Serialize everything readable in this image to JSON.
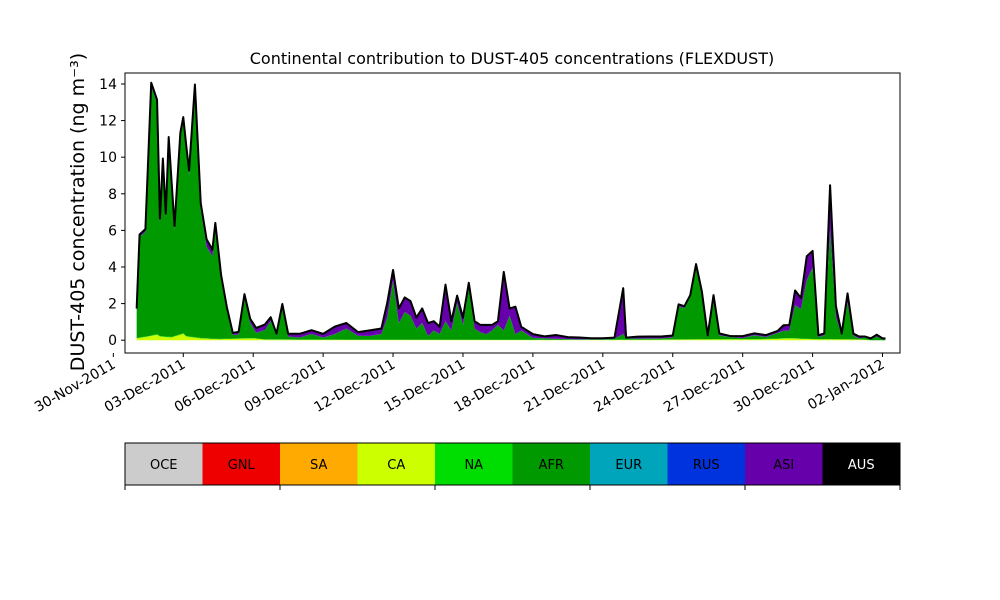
{
  "chart_data": {
    "type": "area",
    "title": "Continental contribution to DUST-405 concentrations (FLEXDUST)",
    "ylabel": "DUST-405 concentration (ng m⁻³)",
    "xlabel": "",
    "ylim": [
      -0.7,
      14.6
    ],
    "xlim": [
      "2011-11-30T12:00",
      "2012-01-02T18:00"
    ],
    "yticks": [
      0,
      2,
      4,
      6,
      8,
      10,
      12,
      14
    ],
    "xtick_labels": [
      "30-Nov-2011",
      "03-Dec-2011",
      "06-Dec-2011",
      "09-Dec-2011",
      "12-Dec-2011",
      "15-Dec-2011",
      "18-Dec-2011",
      "21-Dec-2011",
      "24-Dec-2011",
      "27-Dec-2011",
      "30-Dec-2011",
      "02-Jan-2012"
    ],
    "xtick_dates": [
      "2011-11-30",
      "2011-12-03",
      "2011-12-06",
      "2011-12-09",
      "2011-12-12",
      "2011-12-15",
      "2011-12-18",
      "2011-12-21",
      "2011-12-24",
      "2011-12-27",
      "2011-12-30",
      "2012-01-02"
    ],
    "grid": false,
    "stack_order": [
      "CA",
      "NA",
      "AFR",
      "RUS",
      "ASI"
    ],
    "series": [
      {
        "name": "CA",
        "color": "#ccff00",
        "points": [
          [
            "2011-12-01T00:00",
            0.1
          ],
          [
            "2011-12-01T12:00",
            0.2
          ],
          [
            "2011-12-01T21:00",
            0.3
          ],
          [
            "2011-12-02T00:00",
            0.2
          ],
          [
            "2011-12-02T12:00",
            0.15
          ],
          [
            "2011-12-02T21:00",
            0.3
          ],
          [
            "2011-12-03T00:00",
            0.35
          ],
          [
            "2011-12-03T03:00",
            0.2
          ],
          [
            "2011-12-03T18:00",
            0.1
          ],
          [
            "2011-12-04T12:00",
            0.05
          ],
          [
            "2011-12-06T00:00",
            0.1
          ],
          [
            "2011-12-06T12:00",
            0.03
          ],
          [
            "2011-12-10T00:00",
            0.02
          ],
          [
            "2011-12-20T00:00",
            0.01
          ],
          [
            "2011-12-28T00:00",
            0.05
          ],
          [
            "2011-12-29T00:00",
            0.1
          ],
          [
            "2011-12-30T00:00",
            0.05
          ],
          [
            "2012-01-01T06:00",
            0.03
          ]
        ]
      },
      {
        "name": "NA",
        "color": "#00dd00",
        "points": [
          [
            "2011-12-01T00:00",
            0.02
          ],
          [
            "2011-12-02T00:00",
            0.03
          ],
          [
            "2011-12-03T00:00",
            0.03
          ],
          [
            "2011-12-04T00:00",
            0.02
          ],
          [
            "2011-12-05T00:00",
            0.02
          ],
          [
            "2011-12-10T00:00",
            0.01
          ],
          [
            "2011-12-20T00:00",
            0.01
          ],
          [
            "2011-12-29T00:00",
            0.02
          ],
          [
            "2012-01-01T06:00",
            0.01
          ]
        ]
      },
      {
        "name": "AFR",
        "color": "#009900",
        "points": [
          [
            "2011-12-01T00:00",
            1.5
          ],
          [
            "2011-12-01T03:00",
            5.5
          ],
          [
            "2011-12-01T09:00",
            5.7
          ],
          [
            "2011-12-01T15:00",
            13.6
          ],
          [
            "2011-12-01T21:00",
            12.6
          ],
          [
            "2011-12-02T00:00",
            6.2
          ],
          [
            "2011-12-02T03:00",
            9.5
          ],
          [
            "2011-12-02T06:00",
            6.5
          ],
          [
            "2011-12-02T09:00",
            10.7
          ],
          [
            "2011-12-02T15:00",
            5.8
          ],
          [
            "2011-12-02T21:00",
            10.8
          ],
          [
            "2011-12-03T00:00",
            11.6
          ],
          [
            "2011-12-03T06:00",
            8.8
          ],
          [
            "2011-12-03T12:00",
            13.5
          ],
          [
            "2011-12-03T18:00",
            7.0
          ],
          [
            "2011-12-04T00:00",
            5.0
          ],
          [
            "2011-12-04T06:00",
            4.5
          ],
          [
            "2011-12-04T09:00",
            6.0
          ],
          [
            "2011-12-04T15:00",
            3.2
          ],
          [
            "2011-12-04T21:00",
            1.5
          ],
          [
            "2011-12-05T03:00",
            0.2
          ],
          [
            "2011-12-05T09:00",
            0.2
          ],
          [
            "2011-12-05T15:00",
            2.2
          ],
          [
            "2011-12-05T21:00",
            0.8
          ],
          [
            "2011-12-06T03:00",
            0.3
          ],
          [
            "2011-12-06T12:00",
            0.5
          ],
          [
            "2011-12-06T18:00",
            1.0
          ],
          [
            "2011-12-07T00:00",
            0.2
          ],
          [
            "2011-12-07T06:00",
            1.8
          ],
          [
            "2011-12-07T12:00",
            0.15
          ],
          [
            "2011-12-08T00:00",
            0.1
          ],
          [
            "2011-12-08T12:00",
            0.3
          ],
          [
            "2011-12-09T00:00",
            0.1
          ],
          [
            "2011-12-09T12:00",
            0.3
          ],
          [
            "2011-12-10T00:00",
            0.6
          ],
          [
            "2011-12-10T12:00",
            0.2
          ],
          [
            "2011-12-11T00:00",
            0.2
          ],
          [
            "2011-12-11T12:00",
            0.3
          ],
          [
            "2011-12-11T18:00",
            1.2
          ],
          [
            "2011-12-12T00:00",
            3.2
          ],
          [
            "2011-12-12T06:00",
            0.9
          ],
          [
            "2011-12-12T12:00",
            1.5
          ],
          [
            "2011-12-12T18:00",
            1.3
          ],
          [
            "2011-12-13T00:00",
            0.6
          ],
          [
            "2011-12-13T06:00",
            0.9
          ],
          [
            "2011-12-13T12:00",
            0.2
          ],
          [
            "2011-12-13T18:00",
            0.5
          ],
          [
            "2011-12-14T00:00",
            0.3
          ],
          [
            "2011-12-14T06:00",
            1.0
          ],
          [
            "2011-12-14T12:00",
            0.5
          ],
          [
            "2011-12-14T18:00",
            2.0
          ],
          [
            "2011-12-15T00:00",
            0.8
          ],
          [
            "2011-12-15T06:00",
            2.8
          ],
          [
            "2011-12-15T12:00",
            0.6
          ],
          [
            "2011-12-15T18:00",
            0.4
          ],
          [
            "2011-12-16T00:00",
            0.3
          ],
          [
            "2011-12-16T06:00",
            0.5
          ],
          [
            "2011-12-16T12:00",
            0.8
          ],
          [
            "2011-12-16T18:00",
            0.5
          ],
          [
            "2011-12-17T00:00",
            1.3
          ],
          [
            "2011-12-17T06:00",
            0.3
          ],
          [
            "2011-12-17T12:00",
            0.5
          ],
          [
            "2011-12-17T18:00",
            0.3
          ],
          [
            "2011-12-18T00:00",
            0.1
          ],
          [
            "2011-12-19T00:00",
            0.05
          ],
          [
            "2011-12-20T00:00",
            0.02
          ],
          [
            "2011-12-21T00:00",
            0.02
          ],
          [
            "2011-12-21T12:00",
            0.05
          ],
          [
            "2011-12-21T21:00",
            0.3
          ],
          [
            "2011-12-22T00:00",
            0.05
          ],
          [
            "2011-12-22T12:00",
            0.05
          ],
          [
            "2011-12-23T00:00",
            0.05
          ],
          [
            "2011-12-23T12:00",
            0.05
          ],
          [
            "2011-12-24T00:00",
            0.1
          ],
          [
            "2011-12-24T06:00",
            1.8
          ],
          [
            "2011-12-24T12:00",
            1.7
          ],
          [
            "2011-12-24T18:00",
            2.3
          ],
          [
            "2011-12-25T00:00",
            3.9
          ],
          [
            "2011-12-25T06:00",
            2.5
          ],
          [
            "2011-12-25T12:00",
            0.1
          ],
          [
            "2011-12-25T18:00",
            2.2
          ],
          [
            "2011-12-26T00:00",
            0.2
          ],
          [
            "2011-12-26T12:00",
            0.1
          ],
          [
            "2011-12-27T00:00",
            0.05
          ],
          [
            "2011-12-27T12:00",
            0.2
          ],
          [
            "2011-12-28T00:00",
            0.1
          ],
          [
            "2011-12-28T12:00",
            0.3
          ],
          [
            "2011-12-28T18:00",
            0.4
          ],
          [
            "2011-12-29T00:00",
            0.4
          ],
          [
            "2011-12-29T06:00",
            1.8
          ],
          [
            "2011-12-29T12:00",
            1.6
          ],
          [
            "2011-12-29T18:00",
            3.2
          ],
          [
            "2011-12-30T00:00",
            3.9
          ],
          [
            "2011-12-30T06:00",
            0.1
          ],
          [
            "2011-12-30T12:00",
            0.2
          ],
          [
            "2011-12-30T18:00",
            6.0
          ],
          [
            "2011-12-31T00:00",
            1.2
          ],
          [
            "2011-12-31T06:00",
            0.2
          ],
          [
            "2011-12-31T12:00",
            2.0
          ],
          [
            "2011-12-31T18:00",
            0.2
          ],
          [
            "2012-01-01T00:00",
            0.05
          ],
          [
            "2012-01-01T06:00",
            0.1
          ],
          [
            "2012-01-01T12:00",
            0.05
          ],
          [
            "2012-01-01T18:00",
            0.2
          ],
          [
            "2012-01-02T00:00",
            0.05
          ],
          [
            "2012-01-02T03:00",
            0.05
          ]
        ]
      },
      {
        "name": "RUS",
        "color": "#0033dd",
        "points": [
          [
            "2011-12-01T00:00",
            0.01
          ],
          [
            "2011-12-10T00:00",
            0.01
          ],
          [
            "2011-12-20T00:00",
            0.01
          ],
          [
            "2012-01-01T06:00",
            0.01
          ]
        ]
      },
      {
        "name": "ASI",
        "color": "#6600aa",
        "points": [
          [
            "2011-12-01T00:00",
            0.1
          ],
          [
            "2011-12-01T15:00",
            0.2
          ],
          [
            "2011-12-02T12:00",
            0.2
          ],
          [
            "2011-12-03T00:00",
            0.2
          ],
          [
            "2011-12-03T12:00",
            0.3
          ],
          [
            "2011-12-04T00:00",
            0.4
          ],
          [
            "2011-12-04T12:00",
            0.3
          ],
          [
            "2011-12-05T03:00",
            0.1
          ],
          [
            "2011-12-05T15:00",
            0.2
          ],
          [
            "2011-12-06T12:00",
            0.3
          ],
          [
            "2011-12-07T00:00",
            0.1
          ],
          [
            "2011-12-08T00:00",
            0.2
          ],
          [
            "2011-12-08T12:00",
            0.2
          ],
          [
            "2011-12-09T00:00",
            0.2
          ],
          [
            "2011-12-09T12:00",
            0.4
          ],
          [
            "2011-12-10T00:00",
            0.3
          ],
          [
            "2011-12-10T12:00",
            0.2
          ],
          [
            "2011-12-11T00:00",
            0.3
          ],
          [
            "2011-12-11T12:00",
            0.3
          ],
          [
            "2011-12-11T18:00",
            0.8
          ],
          [
            "2011-12-12T00:00",
            0.6
          ],
          [
            "2011-12-12T06:00",
            0.8
          ],
          [
            "2011-12-12T12:00",
            0.8
          ],
          [
            "2011-12-12T18:00",
            0.8
          ],
          [
            "2011-12-13T00:00",
            0.6
          ],
          [
            "2011-12-13T06:00",
            0.8
          ],
          [
            "2011-12-13T12:00",
            0.7
          ],
          [
            "2011-12-13T18:00",
            0.5
          ],
          [
            "2011-12-14T00:00",
            0.4
          ],
          [
            "2011-12-14T06:00",
            2.0
          ],
          [
            "2011-12-14T12:00",
            0.5
          ],
          [
            "2011-12-14T18:00",
            0.4
          ],
          [
            "2011-12-15T00:00",
            0.4
          ],
          [
            "2011-12-15T06:00",
            0.3
          ],
          [
            "2011-12-15T12:00",
            0.4
          ],
          [
            "2011-12-15T18:00",
            0.4
          ],
          [
            "2011-12-16T00:00",
            0.5
          ],
          [
            "2011-12-16T06:00",
            0.3
          ],
          [
            "2011-12-16T12:00",
            0.2
          ],
          [
            "2011-12-16T18:00",
            3.2
          ],
          [
            "2011-12-17T00:00",
            0.4
          ],
          [
            "2011-12-17T06:00",
            1.5
          ],
          [
            "2011-12-17T12:00",
            0.2
          ],
          [
            "2011-12-17T18:00",
            0.2
          ],
          [
            "2011-12-18T00:00",
            0.2
          ],
          [
            "2011-12-18T12:00",
            0.1
          ],
          [
            "2011-12-19T00:00",
            0.2
          ],
          [
            "2011-12-19T12:00",
            0.1
          ],
          [
            "2011-12-20T00:00",
            0.1
          ],
          [
            "2011-12-20T12:00",
            0.05
          ],
          [
            "2011-12-21T00:00",
            0.05
          ],
          [
            "2011-12-21T12:00",
            0.05
          ],
          [
            "2011-12-21T21:00",
            2.5
          ],
          [
            "2011-12-22T00:00",
            0.05
          ],
          [
            "2011-12-22T12:00",
            0.1
          ],
          [
            "2011-12-23T00:00",
            0.1
          ],
          [
            "2011-12-23T12:00",
            0.1
          ],
          [
            "2011-12-24T00:00",
            0.1
          ],
          [
            "2011-12-24T06:00",
            0.1
          ],
          [
            "2011-12-24T12:00",
            0.1
          ],
          [
            "2011-12-24T18:00",
            0.1
          ],
          [
            "2011-12-25T00:00",
            0.2
          ],
          [
            "2011-12-25T06:00",
            0.1
          ],
          [
            "2011-12-25T12:00",
            0.1
          ],
          [
            "2011-12-25T18:00",
            0.2
          ],
          [
            "2011-12-26T00:00",
            0.1
          ],
          [
            "2011-12-26T12:00",
            0.05
          ],
          [
            "2011-12-27T00:00",
            0.1
          ],
          [
            "2011-12-27T12:00",
            0.1
          ],
          [
            "2011-12-28T00:00",
            0.1
          ],
          [
            "2011-12-28T12:00",
            0.1
          ],
          [
            "2011-12-28T18:00",
            0.3
          ],
          [
            "2011-12-29T00:00",
            0.3
          ],
          [
            "2011-12-29T06:00",
            0.8
          ],
          [
            "2011-12-29T12:00",
            0.6
          ],
          [
            "2011-12-29T18:00",
            1.3
          ],
          [
            "2011-12-30T00:00",
            0.9
          ],
          [
            "2011-12-30T06:00",
            0.1
          ],
          [
            "2011-12-30T12:00",
            0.1
          ],
          [
            "2011-12-30T18:00",
            2.4
          ],
          [
            "2011-12-31T00:00",
            0.6
          ],
          [
            "2011-12-31T06:00",
            0.1
          ],
          [
            "2011-12-31T12:00",
            0.5
          ],
          [
            "2011-12-31T18:00",
            0.1
          ],
          [
            "2012-01-01T00:00",
            0.1
          ],
          [
            "2012-01-01T06:00",
            0.05
          ],
          [
            "2012-01-01T12:00",
            0.05
          ],
          [
            "2012-01-01T18:00",
            0.1
          ],
          [
            "2012-01-02T00:00",
            0.05
          ],
          [
            "2012-01-02T03:00",
            0.05
          ]
        ]
      }
    ],
    "colorbar": {
      "labels": [
        "OCE",
        "GNL",
        "SA",
        "CA",
        "NA",
        "AFR",
        "EUR",
        "RUS",
        "ASI",
        "AUS"
      ],
      "colors": [
        "#cccccc",
        "#ee0000",
        "#ffaa00",
        "#ccff00",
        "#00dd00",
        "#009900",
        "#00a5bb",
        "#0033dd",
        "#6600aa",
        "#000000"
      ],
      "text_colors": [
        "#000000",
        "#000000",
        "#000000",
        "#000000",
        "#000000",
        "#000000",
        "#000000",
        "#000000",
        "#000000",
        "#ffffff"
      ]
    }
  }
}
